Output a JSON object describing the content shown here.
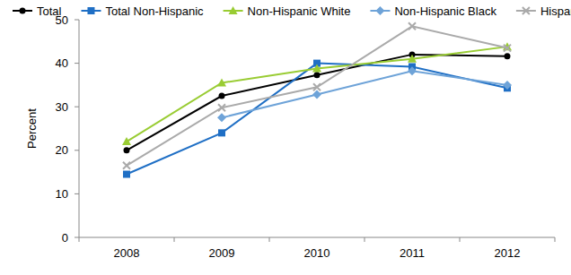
{
  "chart_data": {
    "type": "line",
    "y_label": "Percent",
    "categories": [
      "2008",
      "2009",
      "2010",
      "2011",
      "2012"
    ],
    "series": [
      {
        "name": "Total",
        "color": "#000000",
        "marker": "circle",
        "values": [
          20,
          32.5,
          37.3,
          42,
          41.6
        ]
      },
      {
        "name": "Total Non-Hispanic",
        "color": "#1f6fc5",
        "marker": "square",
        "values": [
          14.5,
          24,
          40,
          39.2,
          34.3
        ]
      },
      {
        "name": "Non-Hispanic White",
        "color": "#99cc33",
        "marker": "triangle",
        "values": [
          22,
          35.5,
          38.8,
          41,
          43.8
        ]
      },
      {
        "name": "Non-Hispanic Black",
        "color": "#6ea3d8",
        "marker": "diamond",
        "values": [
          null,
          27.5,
          32.8,
          38.2,
          35
        ]
      },
      {
        "name": "Hispanic",
        "color": "#aaaaaa",
        "marker": "x",
        "values": [
          16.5,
          29.8,
          34.5,
          48.5,
          43.5
        ]
      }
    ],
    "ylim": [
      0,
      50
    ],
    "yticks": [
      0,
      10,
      20,
      30,
      40,
      50
    ],
    "grid": false,
    "legend": "top"
  }
}
